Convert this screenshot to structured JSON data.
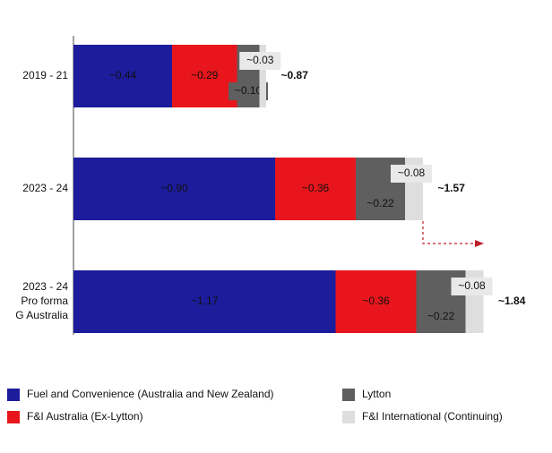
{
  "chart_data": {
    "type": "bar",
    "orientation": "horizontal",
    "stacked": true,
    "categories": [
      "2019 - 21",
      "2023 - 24",
      "2023 - 24\nPro forma\nG Australia"
    ],
    "series": [
      {
        "name": "Fuel and Convenience (Australia and New Zealand)",
        "color": "#1c1c9c",
        "values": [
          0.44,
          0.9,
          1.17
        ],
        "value_labels": [
          "~0.44",
          "~0.90",
          "~1.17"
        ]
      },
      {
        "name": "F&I Australia (Ex-Lytton)",
        "color": "#e8161c",
        "values": [
          0.29,
          0.36,
          0.36
        ],
        "value_labels": [
          "~0.29",
          "~0.36",
          "~0.36"
        ]
      },
      {
        "name": "Lytton",
        "color": "#5f5f5f",
        "values": [
          0.1,
          0.22,
          0.22
        ],
        "value_labels": [
          "~0.10",
          "~0.22",
          "~0.22"
        ]
      },
      {
        "name": "F&I International (Continuing)",
        "color": "#dedede",
        "values": [
          0.03,
          0.08,
          0.08
        ],
        "value_labels": [
          "~0.03",
          "~0.08",
          "~0.08"
        ]
      }
    ],
    "totals": [
      0.87,
      1.57,
      1.84
    ],
    "total_labels": [
      "~0.87",
      "~1.57",
      "~1.84"
    ]
  }
}
